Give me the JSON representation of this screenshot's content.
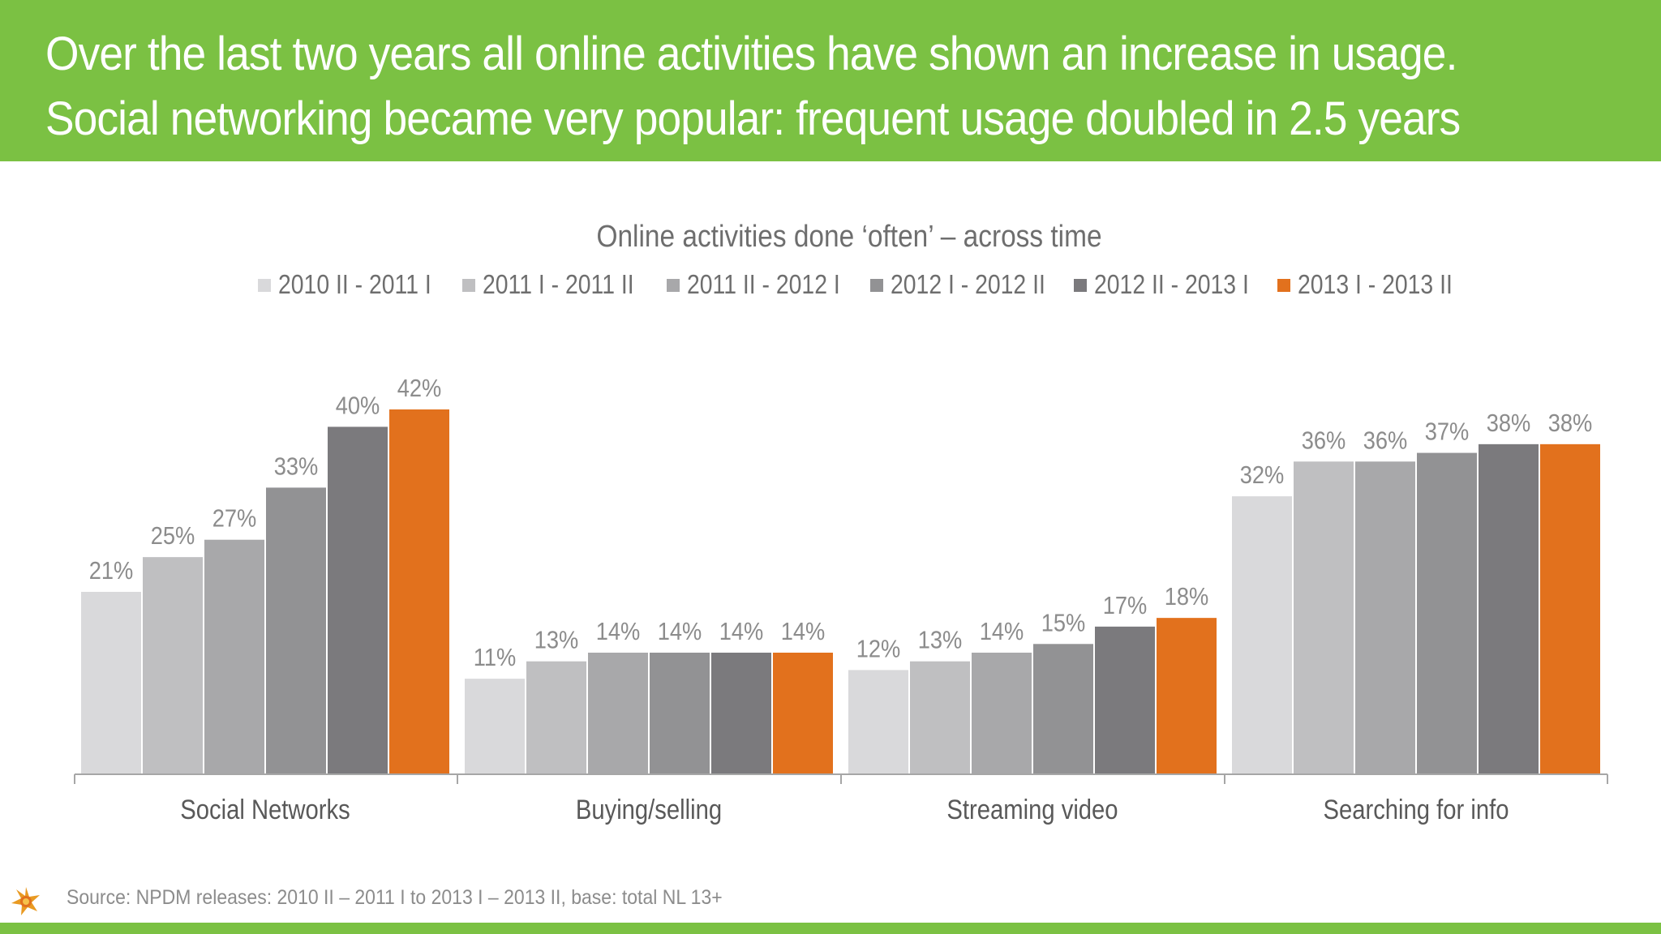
{
  "headline": {
    "line1": "Over the last two years all online activities have shown an increase in usage.",
    "line2": "Social networking became very popular: frequent usage doubled in 2.5 years"
  },
  "chart_data": {
    "type": "bar",
    "title": "Online activities done ‘often’ – across time",
    "categories": [
      "Social Networks",
      "Buying/selling",
      "Streaming video",
      "Searching for info"
    ],
    "series": [
      {
        "name": "2010 II - 2011 I",
        "values": [
          21,
          11,
          12,
          32
        ],
        "labels": [
          "21%",
          "11%",
          "12%",
          "32%"
        ],
        "color": "#d9d9db"
      },
      {
        "name": "2011 I - 2011 II",
        "values": [
          25,
          13,
          13,
          36
        ],
        "labels": [
          "25%",
          "13%",
          "13%",
          "36%"
        ],
        "color": "#bfbfc1"
      },
      {
        "name": "2011 II - 2012 I",
        "values": [
          27,
          14,
          14,
          36
        ],
        "labels": [
          "27%",
          "14%",
          "14%",
          "36%"
        ],
        "color": "#a8a8aa"
      },
      {
        "name": "2012 I - 2012 II",
        "values": [
          33,
          14,
          15,
          37
        ],
        "labels": [
          "33%",
          "14%",
          "15%",
          "37%"
        ],
        "color": "#929294"
      },
      {
        "name": "2012 II - 2013 I",
        "values": [
          40,
          14,
          17,
          38
        ],
        "labels": [
          "40%",
          "14%",
          "17%",
          "38%"
        ],
        "color": "#7b7a7d"
      },
      {
        "name": "2013 I - 2013 II",
        "values": [
          42,
          14,
          18,
          38
        ],
        "labels": [
          "42%",
          "14%",
          "18%",
          "38%"
        ],
        "color": "#e2711d"
      }
    ],
    "ylim": [
      0,
      42
    ],
    "grid": false,
    "legend_position": "top"
  },
  "footer": {
    "source": "Source: NPDM releases: 2010 II – 2011 I to 2013 I – 2013 II, base: total NL 13+"
  },
  "colors": {
    "header_bg": "#7bc143",
    "accent": "#e2711d",
    "label_text": "#8c8c8c",
    "category_text": "#595959"
  },
  "icons": {
    "logo": "sun-logo-icon"
  }
}
